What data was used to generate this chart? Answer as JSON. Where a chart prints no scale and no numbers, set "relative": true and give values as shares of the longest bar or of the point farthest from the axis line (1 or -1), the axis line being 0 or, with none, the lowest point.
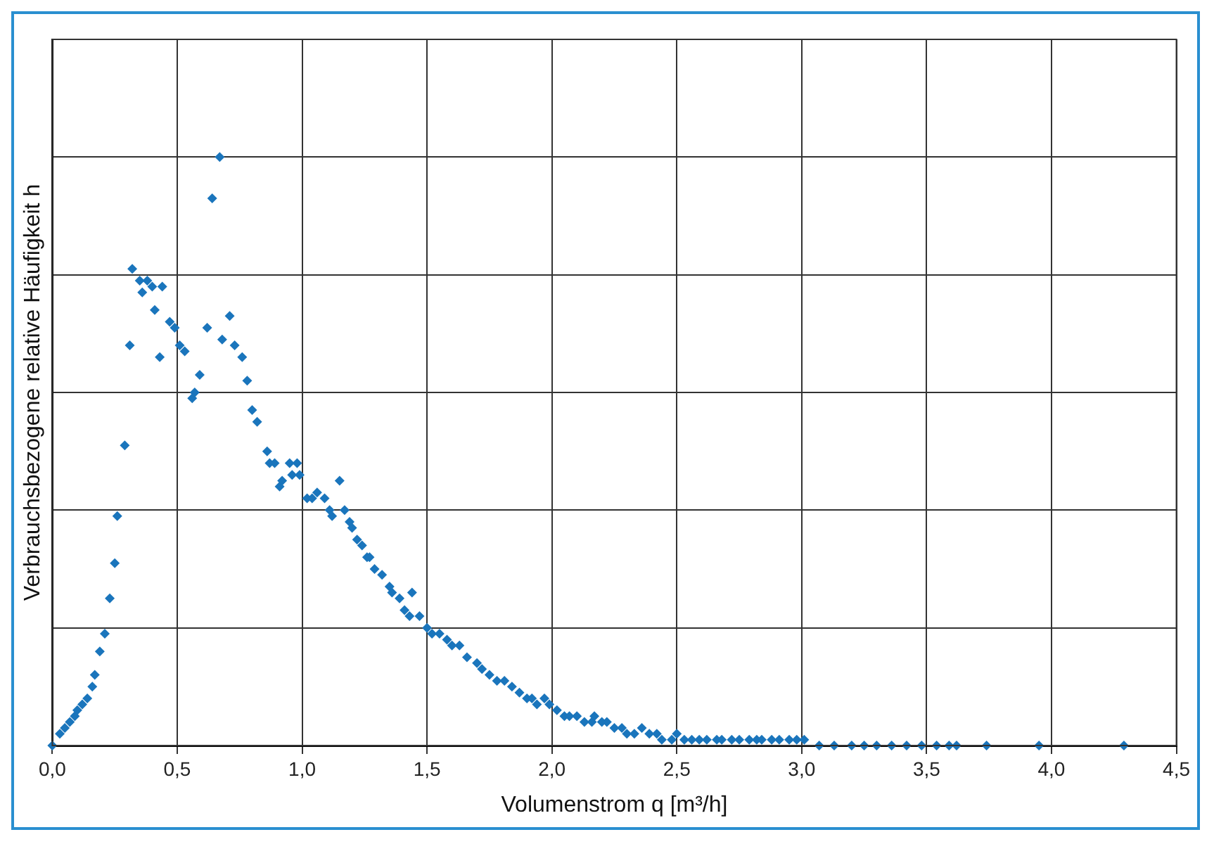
{
  "chart_data": {
    "type": "scatter",
    "xlabel": "Volumenstrom q [m³/h]",
    "ylabel": "Verbrauchsbezogene relative Häufigkeit h",
    "relative": true,
    "grid": true,
    "legend": false,
    "marker": "diamond",
    "xlim": [
      0,
      4.5
    ],
    "xticks": [
      {
        "value": 0,
        "label": "0,0"
      },
      {
        "value": 0.5,
        "label": "0,5"
      },
      {
        "value": 1,
        "label": "1,0"
      },
      {
        "value": 1.5,
        "label": "1,5"
      },
      {
        "value": 2,
        "label": "2,0"
      },
      {
        "value": 2.5,
        "label": "2,5"
      },
      {
        "value": 3,
        "label": "3,0"
      },
      {
        "value": 3.5,
        "label": "3,5"
      },
      {
        "value": 4,
        "label": "4,0"
      },
      {
        "value": 4.5,
        "label": "4,5"
      }
    ],
    "series": [
      {
        "color": "#1a75bc",
        "x": [
          0,
          0.03,
          0.05,
          0.07,
          0.09,
          0.1,
          0.12,
          0.14,
          0.16,
          0.17,
          0.19,
          0.21,
          0.23,
          0.25,
          0.26,
          0.29,
          0.31,
          0.32,
          0.35,
          0.36,
          0.38,
          0.4,
          0.41,
          0.43,
          0.44,
          0.47,
          0.49,
          0.51,
          0.53,
          0.56,
          0.57,
          0.59,
          0.62,
          0.64,
          0.67,
          0.68,
          0.71,
          0.73,
          0.76,
          0.78,
          0.8,
          0.82,
          0.86,
          0.87,
          0.89,
          0.91,
          0.92,
          0.95,
          0.96,
          0.98,
          0.99,
          1.02,
          1.04,
          1.06,
          1.09,
          1.11,
          1.12,
          1.15,
          1.17,
          1.19,
          1.2,
          1.22,
          1.24,
          1.26,
          1.27,
          1.29,
          1.32,
          1.35,
          1.36,
          1.39,
          1.41,
          1.43,
          1.44,
          1.47,
          1.5,
          1.52,
          1.55,
          1.58,
          1.6,
          1.63,
          1.66,
          1.7,
          1.72,
          1.75,
          1.78,
          1.81,
          1.84,
          1.87,
          1.9,
          1.92,
          1.94,
          1.97,
          1.99,
          2.02,
          2.05,
          2.07,
          2.1,
          2.13,
          2.16,
          2.17,
          2.2,
          2.22,
          2.25,
          2.28,
          2.3,
          2.33,
          2.36,
          2.39,
          2.42,
          2.44,
          2.48,
          2.5,
          2.53,
          2.56,
          2.59,
          2.62,
          2.66,
          2.68,
          2.72,
          2.75,
          2.79,
          2.82,
          2.84,
          2.88,
          2.91,
          2.95,
          2.98,
          3.01,
          3.07,
          3.13,
          3.2,
          3.25,
          3.3,
          3.36,
          3.42,
          3.48,
          3.54,
          3.59,
          3.62,
          3.74,
          3.95,
          4.29
        ],
        "values": [
          0,
          0.02,
          0.03,
          0.04,
          0.05,
          0.06,
          0.07,
          0.08,
          0.1,
          0.12,
          0.16,
          0.19,
          0.25,
          0.31,
          0.39,
          0.51,
          0.68,
          0.81,
          0.79,
          0.77,
          0.79,
          0.78,
          0.74,
          0.66,
          0.78,
          0.72,
          0.71,
          0.68,
          0.67,
          0.59,
          0.6,
          0.63,
          0.71,
          0.93,
          1,
          0.69,
          0.73,
          0.68,
          0.66,
          0.62,
          0.57,
          0.55,
          0.5,
          0.48,
          0.48,
          0.44,
          0.45,
          0.48,
          0.46,
          0.48,
          0.46,
          0.42,
          0.42,
          0.43,
          0.42,
          0.4,
          0.39,
          0.45,
          0.4,
          0.38,
          0.37,
          0.35,
          0.34,
          0.32,
          0.32,
          0.3,
          0.29,
          0.27,
          0.26,
          0.25,
          0.23,
          0.22,
          0.26,
          0.22,
          0.2,
          0.19,
          0.19,
          0.18,
          0.17,
          0.17,
          0.15,
          0.14,
          0.13,
          0.12,
          0.11,
          0.11,
          0.1,
          0.09,
          0.08,
          0.08,
          0.07,
          0.08,
          0.07,
          0.06,
          0.05,
          0.05,
          0.05,
          0.04,
          0.04,
          0.05,
          0.04,
          0.04,
          0.03,
          0.03,
          0.02,
          0.02,
          0.03,
          0.02,
          0.02,
          0.01,
          0.01,
          0.02,
          0.01,
          0.01,
          0.01,
          0.01,
          0.01,
          0.01,
          0.01,
          0.01,
          0.01,
          0.01,
          0.01,
          0.01,
          0.01,
          0.01,
          0.01,
          0.01,
          0,
          0,
          0,
          0,
          0,
          0,
          0,
          0,
          0,
          0,
          0,
          0,
          0,
          0
        ]
      }
    ]
  }
}
